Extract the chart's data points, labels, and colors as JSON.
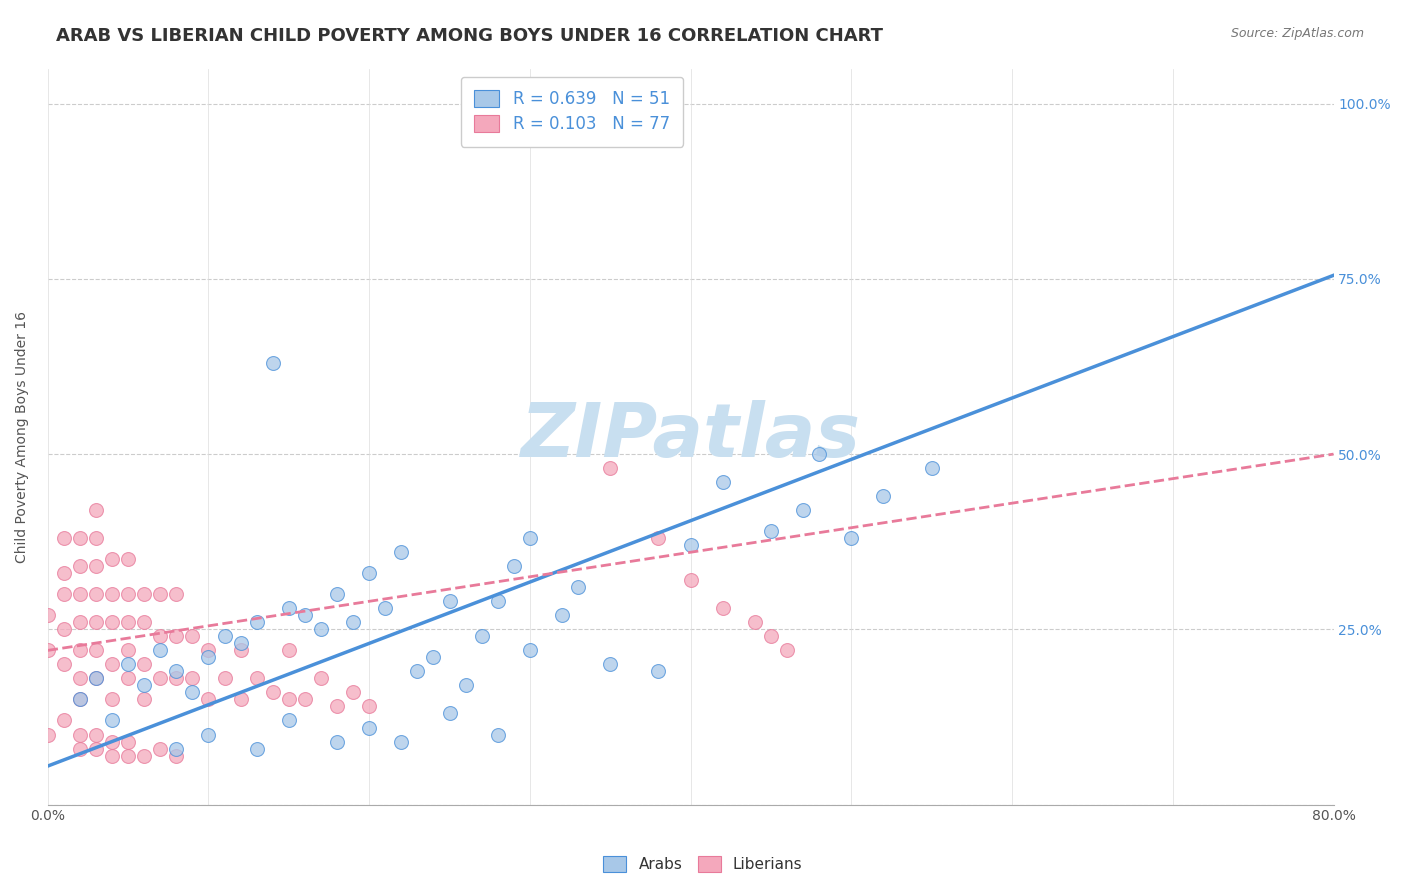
{
  "title": "ARAB VS LIBERIAN CHILD POVERTY AMONG BOYS UNDER 16 CORRELATION CHART",
  "source_text": "Source: ZipAtlas.com",
  "ylabel": "Child Poverty Among Boys Under 16",
  "xlim": [
    0.0,
    0.8
  ],
  "ylim": [
    0.0,
    1.05
  ],
  "xticks": [
    0.0,
    0.1,
    0.2,
    0.3,
    0.4,
    0.5,
    0.6,
    0.7,
    0.8
  ],
  "xticklabels": [
    "0.0%",
    "",
    "",
    "",
    "",
    "",
    "",
    "",
    "80.0%"
  ],
  "ytick_positions": [
    0.0,
    0.25,
    0.5,
    0.75,
    1.0
  ],
  "yticklabels": [
    "",
    "25.0%",
    "50.0%",
    "75.0%",
    "100.0%"
  ],
  "arab_R": 0.639,
  "arab_N": 51,
  "liberian_R": 0.103,
  "liberian_N": 77,
  "arab_color": "#a8c8e8",
  "liberian_color": "#f4a8bc",
  "arab_line_color": "#4a90d9",
  "liberian_line_color": "#e87a9a",
  "watermark_text": "ZIPatlas",
  "watermark_color": "#c8dff0",
  "legend_r_color": "#4a90d9",
  "title_fontsize": 13,
  "axis_label_fontsize": 10,
  "tick_fontsize": 10,
  "arab_scatter_x": [
    0.02,
    0.03,
    0.04,
    0.05,
    0.06,
    0.07,
    0.08,
    0.09,
    0.1,
    0.11,
    0.12,
    0.13,
    0.14,
    0.15,
    0.16,
    0.17,
    0.18,
    0.19,
    0.2,
    0.21,
    0.22,
    0.23,
    0.24,
    0.25,
    0.26,
    0.27,
    0.28,
    0.29,
    0.3,
    0.32,
    0.33,
    0.35,
    0.38,
    0.4,
    0.42,
    0.45,
    0.47,
    0.48,
    0.5,
    0.52,
    0.55,
    0.08,
    0.1,
    0.13,
    0.15,
    0.18,
    0.2,
    0.22,
    0.25,
    0.28,
    0.3
  ],
  "arab_scatter_y": [
    0.15,
    0.18,
    0.12,
    0.2,
    0.17,
    0.22,
    0.19,
    0.16,
    0.21,
    0.24,
    0.23,
    0.26,
    0.63,
    0.28,
    0.27,
    0.25,
    0.3,
    0.26,
    0.33,
    0.28,
    0.36,
    0.19,
    0.21,
    0.29,
    0.17,
    0.24,
    0.29,
    0.34,
    0.38,
    0.27,
    0.31,
    0.2,
    0.19,
    0.37,
    0.46,
    0.39,
    0.42,
    0.5,
    0.38,
    0.44,
    0.48,
    0.08,
    0.1,
    0.08,
    0.12,
    0.09,
    0.11,
    0.09,
    0.13,
    0.1,
    0.22
  ],
  "liberian_scatter_x": [
    0.0,
    0.0,
    0.01,
    0.01,
    0.01,
    0.01,
    0.01,
    0.02,
    0.02,
    0.02,
    0.02,
    0.02,
    0.02,
    0.02,
    0.03,
    0.03,
    0.03,
    0.03,
    0.03,
    0.03,
    0.03,
    0.04,
    0.04,
    0.04,
    0.04,
    0.04,
    0.05,
    0.05,
    0.05,
    0.05,
    0.05,
    0.06,
    0.06,
    0.06,
    0.06,
    0.07,
    0.07,
    0.07,
    0.08,
    0.08,
    0.08,
    0.09,
    0.09,
    0.1,
    0.1,
    0.11,
    0.12,
    0.12,
    0.13,
    0.14,
    0.15,
    0.15,
    0.16,
    0.17,
    0.18,
    0.19,
    0.2,
    0.0,
    0.01,
    0.02,
    0.02,
    0.03,
    0.03,
    0.04,
    0.04,
    0.05,
    0.05,
    0.06,
    0.07,
    0.08,
    0.35,
    0.38,
    0.4,
    0.42,
    0.44,
    0.45,
    0.46
  ],
  "liberian_scatter_y": [
    0.22,
    0.27,
    0.2,
    0.25,
    0.3,
    0.33,
    0.38,
    0.15,
    0.18,
    0.22,
    0.26,
    0.3,
    0.34,
    0.38,
    0.18,
    0.22,
    0.26,
    0.3,
    0.34,
    0.38,
    0.42,
    0.15,
    0.2,
    0.26,
    0.3,
    0.35,
    0.18,
    0.22,
    0.26,
    0.3,
    0.35,
    0.15,
    0.2,
    0.26,
    0.3,
    0.18,
    0.24,
    0.3,
    0.18,
    0.24,
    0.3,
    0.18,
    0.24,
    0.15,
    0.22,
    0.18,
    0.15,
    0.22,
    0.18,
    0.16,
    0.15,
    0.22,
    0.15,
    0.18,
    0.14,
    0.16,
    0.14,
    0.1,
    0.12,
    0.08,
    0.1,
    0.08,
    0.1,
    0.07,
    0.09,
    0.07,
    0.09,
    0.07,
    0.08,
    0.07,
    0.48,
    0.38,
    0.32,
    0.28,
    0.26,
    0.24,
    0.22
  ],
  "arab_trend_x": [
    0.0,
    0.8
  ],
  "arab_trend_y": [
    0.055,
    0.755
  ],
  "lib_trend_x": [
    0.0,
    0.8
  ],
  "lib_trend_y": [
    0.22,
    0.5
  ]
}
